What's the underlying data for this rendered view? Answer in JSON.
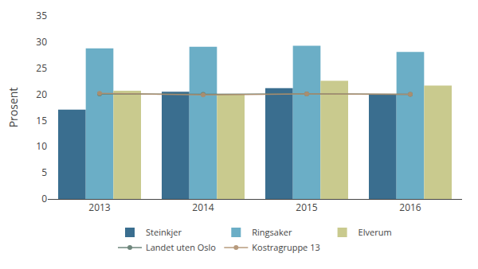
{
  "chart_data": {
    "type": "bar",
    "categories": [
      "2013",
      "2014",
      "2015",
      "2016"
    ],
    "ylabel": "Prosent",
    "series": [
      {
        "name": "Steinkjer",
        "type": "bar",
        "color": "#3a6e8f",
        "values": [
          17.1,
          20.5,
          21.2,
          20.1
        ]
      },
      {
        "name": "Ringsaker",
        "type": "bar",
        "color": "#6baec6",
        "values": [
          28.8,
          29.1,
          29.3,
          28.1
        ]
      },
      {
        "name": "Elverum",
        "type": "bar",
        "color": "#c9ca8e",
        "values": [
          20.7,
          20.1,
          22.6,
          21.7
        ]
      },
      {
        "name": "Landet uten Oslo",
        "type": "line",
        "color": "#5f7a6e",
        "marker": "circle",
        "line_style": "solid",
        "values": [
          20.1,
          20.0,
          20.1,
          20.0
        ]
      },
      {
        "name": "Kostragruppe 13",
        "type": "line",
        "color": "#b09070",
        "marker": "circle",
        "line_style": "solid",
        "values": [
          20.2,
          19.9,
          20.1,
          20.0
        ]
      }
    ],
    "ylim": [
      0,
      35
    ],
    "yticks": [
      0,
      5,
      10,
      15,
      20,
      25,
      30,
      35
    ],
    "grid": false,
    "legend": "bottom"
  }
}
